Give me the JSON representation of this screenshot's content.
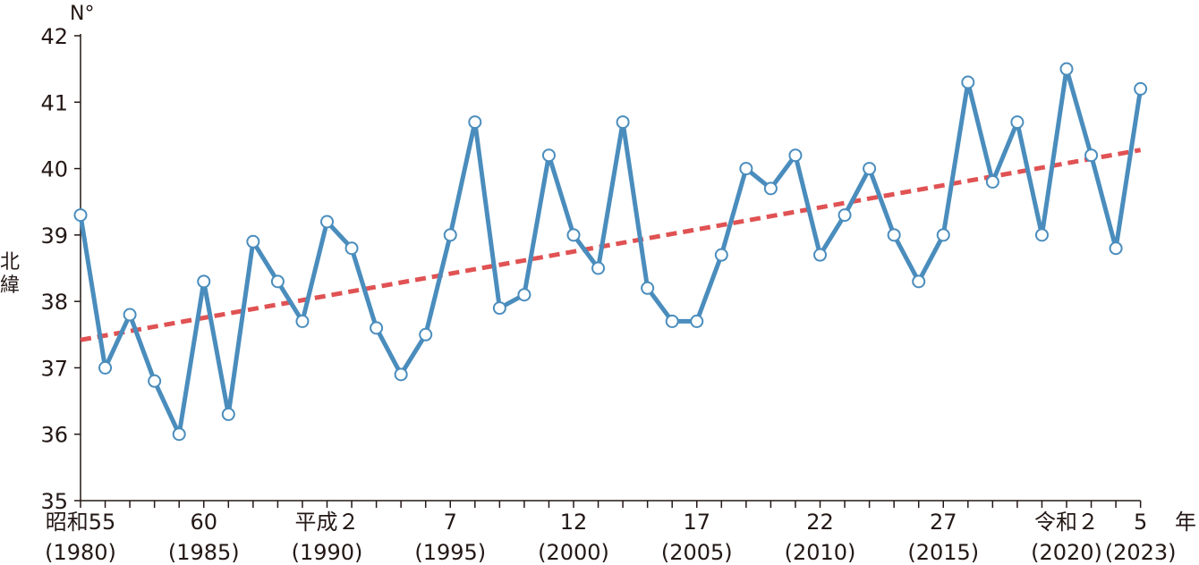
{
  "chart_data": {
    "type": "line",
    "y_unit": "N°",
    "ylabel": "北緯",
    "ylim": [
      35,
      42
    ],
    "y_ticks": [
      "35",
      "36",
      "37",
      "38",
      "39",
      "40",
      "41",
      "42"
    ],
    "x_unit": "年",
    "x": [
      1980,
      1981,
      1982,
      1983,
      1984,
      1985,
      1986,
      1987,
      1988,
      1989,
      1990,
      1991,
      1992,
      1993,
      1994,
      1995,
      1996,
      1997,
      1998,
      1999,
      2000,
      2001,
      2002,
      2003,
      2004,
      2005,
      2006,
      2007,
      2008,
      2009,
      2010,
      2011,
      2012,
      2013,
      2014,
      2015,
      2016,
      2017,
      2018,
      2019,
      2020,
      2021,
      2022,
      2023
    ],
    "x_tick_labels": [
      {
        "year": 1980,
        "era": "昭和55",
        "western": "(1980)"
      },
      {
        "year": 1985,
        "era": "60",
        "western": "(1985)"
      },
      {
        "year": 1990,
        "era": "平成２",
        "western": "(1990)"
      },
      {
        "year": 1995,
        "era": "7",
        "western": "(1995)"
      },
      {
        "year": 2000,
        "era": "12",
        "western": "(2000)"
      },
      {
        "year": 2005,
        "era": "17",
        "western": "(2005)"
      },
      {
        "year": 2010,
        "era": "22",
        "western": "(2010)"
      },
      {
        "year": 2015,
        "era": "27",
        "western": "(2015)"
      },
      {
        "year": 2020,
        "era": "令和２",
        "western": "(2020)"
      },
      {
        "year": 2023,
        "era": "5",
        "western": "(2023)"
      }
    ],
    "series": [
      {
        "values": [
          39.3,
          37.0,
          37.8,
          36.8,
          36.0,
          38.3,
          36.3,
          38.9,
          38.3,
          37.7,
          39.2,
          38.8,
          37.6,
          36.9,
          37.5,
          39.0,
          40.7,
          37.9,
          38.1,
          40.2,
          39.0,
          38.5,
          40.7,
          38.2,
          37.7,
          37.7,
          38.7,
          40.0,
          39.7,
          40.2,
          38.7,
          39.3,
          40.0,
          39.0,
          38.3,
          39.0,
          41.3,
          39.8,
          40.7,
          39.0,
          41.5,
          40.2,
          38.8,
          41.2
        ],
        "color": "#4a8dbd",
        "marker": "circle-open"
      },
      {
        "kind": "trend",
        "x": [
          1980,
          2023
        ],
        "values": [
          37.42,
          40.28
        ],
        "color": "#e05253",
        "style": "dashed"
      }
    ],
    "grid": false,
    "legend": "none"
  }
}
